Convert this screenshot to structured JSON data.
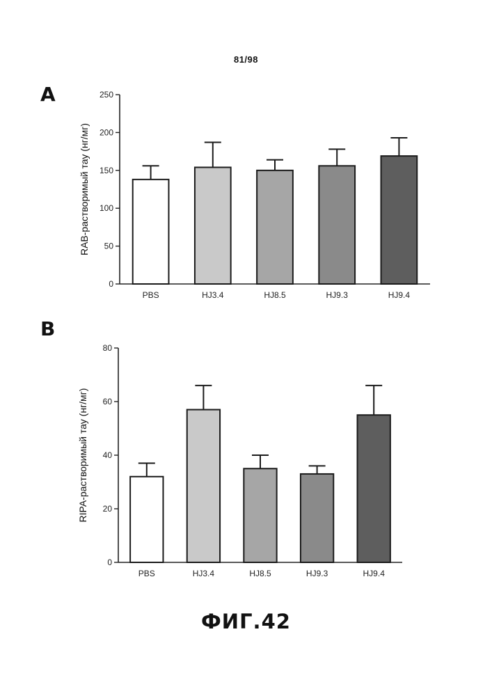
{
  "page": {
    "number": "81/98",
    "caption": "ФИГ.42"
  },
  "colors": {
    "axis": "#222222",
    "bar_stroke": "#1a1a1a",
    "bar_fills": [
      "#ffffff",
      "#c9c9c9",
      "#a6a6a6",
      "#8a8a8a",
      "#5e5e5e"
    ]
  },
  "chart_data": [
    {
      "panel": "A",
      "type": "bar",
      "categories": [
        "PBS",
        "HJ3.4",
        "HJ8.5",
        "HJ9.3",
        "HJ9.4"
      ],
      "values": [
        138,
        154,
        150,
        156,
        169
      ],
      "errors": [
        18,
        33,
        14,
        22,
        24
      ],
      "ylabel": "RAB-растворимый тау (нг/мг)",
      "ylim": [
        0,
        250
      ],
      "yticks": [
        0,
        50,
        100,
        150,
        200,
        250
      ],
      "ytick_labels": [
        "0",
        "50",
        "100",
        "150",
        "200",
        "250"
      ],
      "grid": false
    },
    {
      "panel": "B",
      "type": "bar",
      "categories": [
        "PBS",
        "HJ3.4",
        "HJ8.5",
        "HJ9.3",
        "HJ9.4"
      ],
      "values": [
        32,
        57,
        35,
        33,
        55
      ],
      "errors": [
        5,
        9,
        5,
        3,
        11
      ],
      "ylabel": "RIPA-растворимый тау (нг/мг)",
      "ylim": [
        0,
        80
      ],
      "yticks": [
        0,
        20,
        40,
        60,
        80
      ],
      "ytick_labels": [
        "0",
        "20",
        "40",
        "60",
        "80"
      ],
      "grid": false
    }
  ]
}
